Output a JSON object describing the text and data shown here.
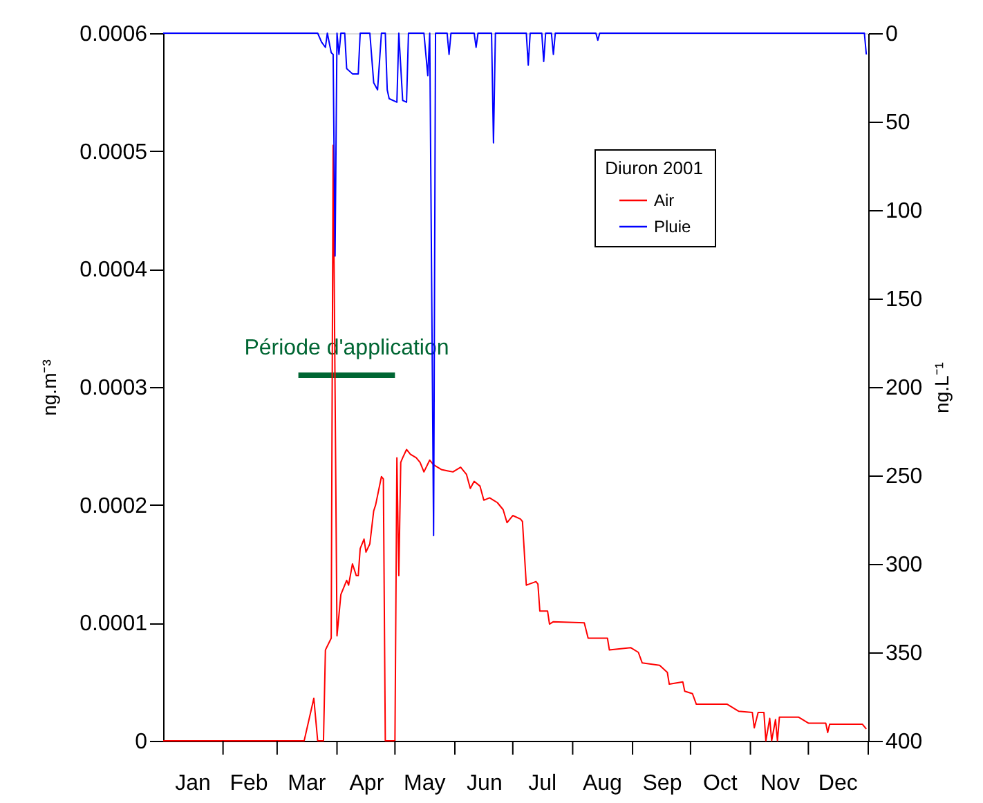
{
  "chart_data": {
    "type": "line",
    "legend_title": "Diuron 2001",
    "ylabel": "ng.m⁻³",
    "y2label": "ng.L⁻¹",
    "legend": "top right",
    "grid": false,
    "xlim": [
      "2001-01-01",
      "2002-01-01"
    ],
    "xticks": [
      {
        "value": "2001-02-01",
        "label": null
      },
      {
        "value": "2001-03-01",
        "label": null
      },
      {
        "value": "2001-04-01",
        "label": null
      },
      {
        "value": "2001-05-01",
        "label": null
      },
      {
        "value": "2001-06-01",
        "label": null
      },
      {
        "value": "2001-07-01",
        "label": null
      },
      {
        "value": "2001-08-01",
        "label": null
      },
      {
        "value": "2001-09-01",
        "label": null
      },
      {
        "value": "2001-10-01",
        "label": null
      },
      {
        "value": "2001-11-01",
        "label": null
      },
      {
        "value": "2001-12-01",
        "label": null
      },
      {
        "value": "2002-01-01",
        "label": null
      },
      {
        "value": "2001-01-16",
        "label": "Jan"
      },
      {
        "value": "2001-02-14",
        "label": "Feb"
      },
      {
        "value": "2001-03-16",
        "label": "Mar"
      },
      {
        "value": "2001-04-16",
        "label": "Apr"
      },
      {
        "value": "2001-05-16",
        "label": "May"
      },
      {
        "value": "2001-06-16",
        "label": "Jun"
      },
      {
        "value": "2001-07-16",
        "label": "Jul"
      },
      {
        "value": "2001-08-16",
        "label": "Aug"
      },
      {
        "value": "2001-09-16",
        "label": "Sep"
      },
      {
        "value": "2001-10-16",
        "label": "Oct"
      },
      {
        "value": "2001-11-16",
        "label": "Nov"
      },
      {
        "value": "2001-12-16",
        "label": "Dec"
      }
    ],
    "ylim": [
      0,
      0.0006
    ],
    "yticks": [
      0,
      0.0001,
      0.0002,
      0.0003,
      0.0004,
      0.0005,
      0.0006
    ],
    "line_style": "solid",
    "y2lim": [
      400,
      0
    ],
    "y2ticks": [
      0,
      50,
      100,
      150,
      200,
      250,
      300,
      350,
      400
    ],
    "series": [
      {
        "name": "Période d'application",
        "color": "#006633",
        "x": [
          "2001-03-12",
          "2001-05-01"
        ],
        "values": [
          0.00031,
          0.00031
        ]
      },
      {
        "name": "Air",
        "color": "#ff0000",
        "x": [
          "2001-01-01",
          "2001-03-15",
          "2001-03-20",
          "2001-03-22",
          "2001-03-25",
          "2001-03-26",
          "2001-03-29",
          "2001-03-30",
          "2001-04-01",
          "2001-04-03",
          "2001-04-06",
          "2001-04-07",
          "2001-04-09",
          "2001-04-11",
          "2001-04-12",
          "2001-04-13",
          "2001-04-15",
          "2001-04-16",
          "2001-04-18",
          "2001-04-20",
          "2001-04-21",
          "2001-04-24",
          "2001-04-25",
          "2001-04-26",
          "2001-05-01",
          "2001-05-02",
          "2001-05-03",
          "2001-05-04",
          "2001-05-05",
          "2001-05-07",
          "2001-05-09",
          "2001-05-12",
          "2001-05-14",
          "2001-05-16",
          "2001-05-19",
          "2001-05-21",
          "2001-05-25",
          "2001-05-28",
          "2001-05-31",
          "2001-06-04",
          "2001-06-07",
          "2001-06-09",
          "2001-06-11",
          "2001-06-14",
          "2001-06-16",
          "2001-06-19",
          "2001-06-21",
          "2001-06-23",
          "2001-06-26",
          "2001-06-28",
          "2001-07-01",
          "2001-07-05",
          "2001-07-06",
          "2001-07-08",
          "2001-07-13",
          "2001-07-14",
          "2001-07-15",
          "2001-07-19",
          "2001-07-20",
          "2001-07-22",
          "2001-08-07",
          "2001-08-09",
          "2001-08-19",
          "2001-08-20",
          "2001-08-31",
          "2001-09-04",
          "2001-09-06",
          "2001-09-15",
          "2001-09-19",
          "2001-09-20",
          "2001-09-27",
          "2001-09-28",
          "2001-10-02",
          "2001-10-04",
          "2001-10-20",
          "2001-10-26",
          "2001-11-02",
          "2001-11-03",
          "2001-11-05",
          "2001-11-08",
          "2001-11-09",
          "2001-11-11",
          "2001-11-12",
          "2001-11-14",
          "2001-11-15",
          "2001-11-16",
          "2001-11-26",
          "2001-12-01",
          "2001-12-10",
          "2001-12-11",
          "2001-12-12",
          "2001-12-29",
          "2001-12-31"
        ],
        "values": [
          0,
          0,
          3.6e-05,
          0,
          0,
          7.7e-05,
          8.7e-05,
          0.000505,
          8.9e-05,
          0.000124,
          0.000136,
          0.000132,
          0.00015,
          0.00014,
          0.00014,
          0.000163,
          0.000171,
          0.00016,
          0.000167,
          0.000195,
          0.0002,
          0.000224,
          0.000222,
          0,
          0,
          0.00024,
          0.00014,
          0.000236,
          0.00024,
          0.000247,
          0.000243,
          0.00024,
          0.000236,
          0.000228,
          0.000238,
          0.000234,
          0.00023,
          0.000229,
          0.000228,
          0.000232,
          0.000226,
          0.000214,
          0.00022,
          0.000216,
          0.000204,
          0.000206,
          0.000204,
          0.000202,
          0.000196,
          0.000185,
          0.000191,
          0.000188,
          0.000186,
          0.000132,
          0.000135,
          0.000133,
          0.00011,
          0.00011,
          9.9e-05,
          0.000101,
          0.0001,
          8.7e-05,
          8.7e-05,
          7.7e-05,
          7.9e-05,
          7.5e-05,
          6.6e-05,
          6.4e-05,
          5.8e-05,
          4.8e-05,
          5e-05,
          4.2e-05,
          4e-05,
          3.1e-05,
          3.1e-05,
          2.5e-05,
          2.4e-05,
          1.1e-05,
          2.4e-05,
          2.4e-05,
          0,
          1.9e-05,
          0,
          1.8e-05,
          0,
          2e-05,
          2e-05,
          1.5e-05,
          1.5e-05,
          7e-06,
          1.4e-05,
          1.4e-05,
          1e-05
        ]
      },
      {
        "name": "Pluie",
        "color": "#0000ff",
        "axis": "y2",
        "x": [
          "2001-01-01",
          "2001-03-22",
          "2001-03-24",
          "2001-03-26",
          "2001-03-27",
          "2001-03-29",
          "2001-03-30",
          "2001-03-31",
          "2001-04-01",
          "2001-04-02",
          "2001-04-03",
          "2001-04-05",
          "2001-04-06",
          "2001-04-09",
          "2001-04-12",
          "2001-04-13",
          "2001-04-18",
          "2001-04-20",
          "2001-04-22",
          "2001-04-24",
          "2001-04-26",
          "2001-04-27",
          "2001-04-28",
          "2001-05-02",
          "2001-05-03",
          "2001-05-05",
          "2001-05-07",
          "2001-05-08",
          "2001-05-16",
          "2001-05-18",
          "2001-05-19",
          "2001-05-21",
          "2001-05-22",
          "2001-05-28",
          "2001-05-29",
          "2001-05-30",
          "2001-06-11",
          "2001-06-12",
          "2001-06-13",
          "2001-06-20",
          "2001-06-21",
          "2001-06-22",
          "2001-07-08",
          "2001-07-09",
          "2001-07-10",
          "2001-07-16",
          "2001-07-17",
          "2001-07-18",
          "2001-07-21",
          "2001-07-22",
          "2001-07-23",
          "2001-08-13",
          "2001-08-14",
          "2001-08-15",
          "2001-12-30",
          "2001-12-31"
        ],
        "values": [
          0,
          0,
          5,
          8,
          0,
          11,
          12,
          126,
          0,
          12,
          0,
          0,
          20,
          23,
          23,
          0,
          0,
          28,
          32,
          0,
          0,
          32,
          37,
          39,
          0,
          38,
          39,
          0,
          0,
          24,
          0,
          284,
          0,
          0,
          12,
          0,
          0,
          8,
          0,
          0,
          62,
          0,
          0,
          18,
          0,
          0,
          16,
          0,
          0,
          12,
          0,
          0,
          4,
          0,
          0,
          12
        ]
      }
    ]
  }
}
